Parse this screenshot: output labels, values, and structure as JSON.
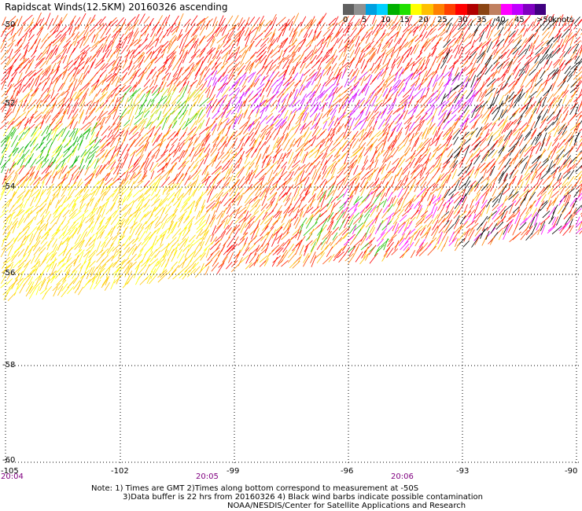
{
  "title": "Rapidscat Winds(12.5KM) 20160326 ascending",
  "legend": {
    "colors": [
      "#606060",
      "#909090",
      "#00a0e0",
      "#00d0ff",
      "#00b000",
      "#20e000",
      "#ffff00",
      "#ffc000",
      "#ff8000",
      "#ff4000",
      "#ff0000",
      "#b00000",
      "#8b4513",
      "#c08060",
      "#ff00ff",
      "#c000ff",
      "#8000c0",
      "#400080"
    ],
    "labels": [
      "0",
      "5",
      "10",
      "15",
      "20",
      "25",
      "30",
      "35",
      "40",
      "45",
      ">50"
    ],
    "units": "knots"
  },
  "lat_labels": [
    "-50",
    "-52",
    "-54",
    "-56",
    "-58",
    "-60"
  ],
  "lon_labels": [
    "-105",
    "-102",
    "-99",
    "-96",
    "-93",
    "-90"
  ],
  "time_labels": [
    "20:04",
    "20:05",
    "20:06"
  ],
  "notes": [
    "Note: 1) Times are GMT 2)Times along bottom correspond to measurement at -50S",
    "3)Data buffer is 22 hrs from 20160326 4) Black wind barbs indicate possible contamination",
    "NOAA/NESDIS/Center for Satellite Applications and Research"
  ]
}
